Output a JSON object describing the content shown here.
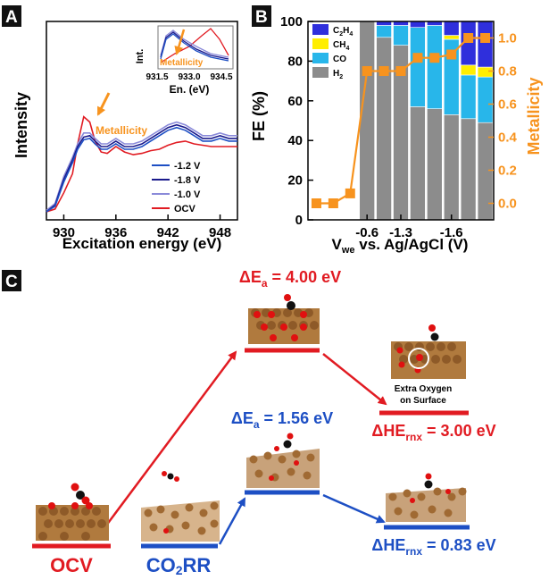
{
  "colors": {
    "red": "#e11b22",
    "blue": "#1d4fc4",
    "orange": "#f7931e",
    "navy": "#1a1a8c",
    "lightblue": "#8a8ad9",
    "c2h4": "#2f2fdc",
    "ch4": "#ffee00",
    "co": "#28b6ea",
    "h2": "#8c8c8c",
    "copper": "#b07a3e",
    "oxygen": "#e01010",
    "carbon": "#111111"
  },
  "panelA": {
    "tag": "A",
    "xlabel": "Excitation energy (eV)",
    "ylabel": "Intensity",
    "xticks": [
      "930",
      "936",
      "942",
      "948"
    ],
    "arrow_label": "Metallicity",
    "inset": {
      "ylabel": "Int.",
      "xlabel": "En. (eV)",
      "xticks": [
        "931.5",
        "933.0",
        "934.5"
      ],
      "arrow_label": "Metallicity"
    },
    "legend": [
      "-1.2 V",
      "-1.8 V",
      "-1.0 V",
      "OCV"
    ]
  },
  "panelB": {
    "tag": "B",
    "ylabel_left": "FE (%)",
    "ylabel_right": "Metallicity",
    "xlabel_main": "V",
    "xlabel_sub": "we",
    "xlabel_rest": " vs. Ag/AgCl (V)",
    "yticks_left": [
      "0",
      "20",
      "40",
      "60",
      "80",
      "100"
    ],
    "yticks_right": [
      "0.0",
      "0.2",
      "0.4",
      "0.6",
      "0.8",
      "1.0"
    ],
    "xticks": [
      "-0.6",
      "-1.3",
      "-1.6"
    ],
    "legend": [
      {
        "main": "C",
        "sub": "2",
        "mid": "H",
        "sub2": "4"
      },
      {
        "main": "CH",
        "sub": "4",
        "mid": "",
        "sub2": ""
      },
      {
        "main": "CO",
        "sub": "",
        "mid": "",
        "sub2": ""
      },
      {
        "main": "H",
        "sub": "2",
        "mid": "",
        "sub2": ""
      }
    ]
  },
  "panelC": {
    "tag": "C",
    "ea_red_main": "ΔE",
    "ea_red_sub": "a",
    "ea_red_val": " = 4.00 eV",
    "ea_blue_main": "ΔE",
    "ea_blue_sub": "a",
    "ea_blue_val": " = 1.56 eV",
    "he_red_main": "ΔHE",
    "he_red_sub": "rnx",
    "he_red_val": " = 3.00 eV",
    "he_blue_main": "ΔHE",
    "he_blue_sub": "rnx",
    "he_blue_val": " = 0.83 eV",
    "extra_oxygen_line1": "Extra Oxygen",
    "extra_oxygen_line2": "on Surface",
    "label_ocv": "OCV",
    "label_co2rr_a": "CO",
    "label_co2rr_b": "2",
    "label_co2rr_c": "RR"
  },
  "chart_data": [
    {
      "type": "line",
      "panel": "A",
      "xlabel": "Excitation energy (eV)",
      "ylabel": "Intensity",
      "xlim": [
        928,
        950
      ],
      "x": [
        928,
        929,
        930,
        931,
        931.6,
        932.3,
        933,
        933.6,
        934.3,
        935,
        936,
        937,
        938,
        939,
        940,
        941,
        942,
        943,
        944,
        945,
        946,
        947,
        948,
        949,
        950
      ],
      "series": [
        {
          "name": "OCV",
          "values": [
            0.02,
            0.04,
            0.16,
            0.3,
            0.52,
            0.72,
            0.68,
            0.54,
            0.46,
            0.45,
            0.5,
            0.46,
            0.44,
            0.45,
            0.47,
            0.48,
            0.51,
            0.53,
            0.54,
            0.52,
            0.51,
            0.5,
            0.5,
            0.5,
            0.5
          ]
        },
        {
          "name": "-1.0 V",
          "values": [
            0.03,
            0.08,
            0.28,
            0.42,
            0.52,
            0.6,
            0.6,
            0.56,
            0.52,
            0.52,
            0.56,
            0.52,
            0.52,
            0.54,
            0.58,
            0.62,
            0.66,
            0.68,
            0.66,
            0.62,
            0.58,
            0.58,
            0.6,
            0.58,
            0.58
          ]
        },
        {
          "name": "-1.8 V",
          "values": [
            0.02,
            0.07,
            0.26,
            0.4,
            0.5,
            0.57,
            0.58,
            0.54,
            0.5,
            0.5,
            0.54,
            0.5,
            0.5,
            0.52,
            0.56,
            0.6,
            0.64,
            0.66,
            0.64,
            0.6,
            0.56,
            0.56,
            0.58,
            0.56,
            0.56
          ]
        },
        {
          "name": "-1.2 V",
          "values": [
            0.02,
            0.06,
            0.24,
            0.38,
            0.48,
            0.55,
            0.56,
            0.52,
            0.48,
            0.48,
            0.52,
            0.48,
            0.48,
            0.5,
            0.54,
            0.58,
            0.62,
            0.64,
            0.62,
            0.58,
            0.54,
            0.54,
            0.56,
            0.54,
            0.54
          ]
        }
      ]
    },
    {
      "type": "bar",
      "panel": "B",
      "ylabel": "FE (%)",
      "ylim": [
        0,
        100
      ],
      "stacked": true,
      "bar_start_index": 3,
      "categories": [
        "1",
        "2",
        "3",
        "4",
        "5",
        "6",
        "7",
        "8",
        "9",
        "10",
        "11"
      ],
      "series": [
        {
          "name": "H2",
          "values": [
            0,
            0,
            0,
            100,
            92,
            88,
            57,
            56,
            53,
            51,
            49
          ]
        },
        {
          "name": "CO",
          "values": [
            0,
            0,
            0,
            0,
            6,
            10,
            40,
            42,
            38,
            22,
            23
          ]
        },
        {
          "name": "CH4",
          "values": [
            0,
            0,
            0,
            0,
            0,
            0,
            0,
            0,
            2,
            5,
            5
          ]
        },
        {
          "name": "C2H4",
          "values": [
            0,
            0,
            0,
            0,
            2,
            2,
            3,
            2,
            7,
            22,
            23
          ]
        }
      ]
    },
    {
      "type": "line",
      "panel": "B",
      "ylabel": "Metallicity",
      "ylim": [
        -0.1,
        1.1
      ],
      "x": [
        "1",
        "2",
        "3",
        "4",
        "5",
        "6",
        "7",
        "8",
        "9",
        "10",
        "11"
      ],
      "series": [
        {
          "name": "Metallicity",
          "values": [
            0.0,
            0.0,
            0.06,
            0.8,
            0.8,
            0.8,
            0.88,
            0.88,
            0.9,
            1.0,
            1.0
          ]
        }
      ]
    }
  ]
}
